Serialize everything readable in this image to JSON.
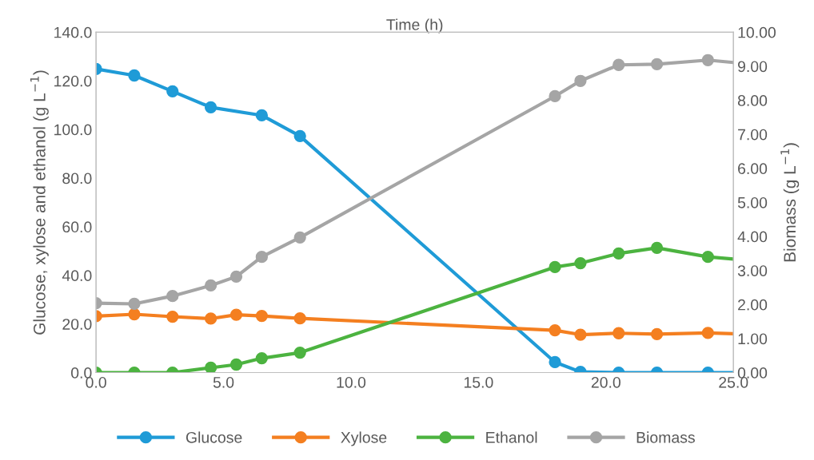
{
  "chart_data": {
    "type": "line",
    "xlabel": "Time (h)",
    "ylabel": "Glucose, xylose and ethanol (g L$^{−1}$)",
    "y2label": "Biomass (g L$^{−1}$)",
    "xlim": [
      0,
      25
    ],
    "xticks": [
      {
        "value": 0,
        "label": "0.0"
      },
      {
        "value": 5,
        "label": "5.0"
      },
      {
        "value": 10,
        "label": "10.0"
      },
      {
        "value": 15,
        "label": "15.0"
      },
      {
        "value": 20,
        "label": "20.0"
      },
      {
        "value": 25,
        "label": "25.0"
      }
    ],
    "ylim": [
      0,
      140
    ],
    "yticks": [
      {
        "value": 0,
        "label": "0.0"
      },
      {
        "value": 20,
        "label": "20.0"
      },
      {
        "value": 40,
        "label": "40.0"
      },
      {
        "value": 60,
        "label": "60.0"
      },
      {
        "value": 80,
        "label": "80.0"
      },
      {
        "value": 100,
        "label": "100.0"
      },
      {
        "value": 120,
        "label": "120.0"
      },
      {
        "value": 140,
        "label": "140.0"
      }
    ],
    "y2lim": [
      0,
      10
    ],
    "y2ticks": [
      {
        "value": 0,
        "label": "0.00"
      },
      {
        "value": 1,
        "label": "1.00"
      },
      {
        "value": 2,
        "label": "2.00"
      },
      {
        "value": 3,
        "label": "3.00"
      },
      {
        "value": 4,
        "label": "4.00"
      },
      {
        "value": 5,
        "label": "5.00"
      },
      {
        "value": 6,
        "label": "6.00"
      },
      {
        "value": 7,
        "label": "7.00"
      },
      {
        "value": 8,
        "label": "8.00"
      },
      {
        "value": 9,
        "label": "9.00"
      },
      {
        "value": 10,
        "label": "10.00"
      }
    ],
    "marker": "circle",
    "line_style": "solid",
    "grid": false,
    "legend": "bottom",
    "series": [
      {
        "name": "Glucose",
        "color": "#1f9bd7",
        "x": [
          0,
          1.5,
          3,
          4.5,
          6.5,
          8,
          18,
          19,
          20.5,
          22,
          24,
          25
        ],
        "values": [
          124.9,
          122.2,
          115.7,
          109.1,
          105.8,
          97.3,
          4.3,
          0.3,
          0,
          0,
          0,
          0
        ]
      },
      {
        "name": "Xylose",
        "color": "#f47f20",
        "x": [
          0,
          1.5,
          3,
          4.5,
          5.5,
          6.5,
          8,
          18,
          19,
          20.5,
          22,
          24,
          25
        ],
        "values": [
          23.2,
          24.0,
          23.0,
          22.2,
          23.8,
          23.3,
          22.3,
          17.4,
          15.6,
          16.2,
          15.8,
          16.3,
          16.0
        ]
      },
      {
        "name": "Ethanol",
        "color": "#4cb340",
        "x": [
          0,
          1.5,
          3,
          4.5,
          5.5,
          6.5,
          8,
          18,
          19,
          20.5,
          22,
          24,
          25
        ],
        "values": [
          0,
          0,
          0,
          2.0,
          3.3,
          5.9,
          8.2,
          43.4,
          45.0,
          49.0,
          51.3,
          47.6,
          46.7
        ]
      },
      {
        "name": "Biomass",
        "color": "#a5a5a5",
        "axis": "y2",
        "x": [
          0,
          1.5,
          3,
          4.5,
          5.5,
          6.5,
          8,
          18,
          19,
          20.5,
          22,
          24,
          25
        ],
        "values": [
          2.04,
          2.02,
          2.25,
          2.56,
          2.82,
          3.4,
          3.97,
          8.12,
          8.57,
          9.04,
          9.06,
          9.18,
          9.11
        ]
      }
    ]
  }
}
